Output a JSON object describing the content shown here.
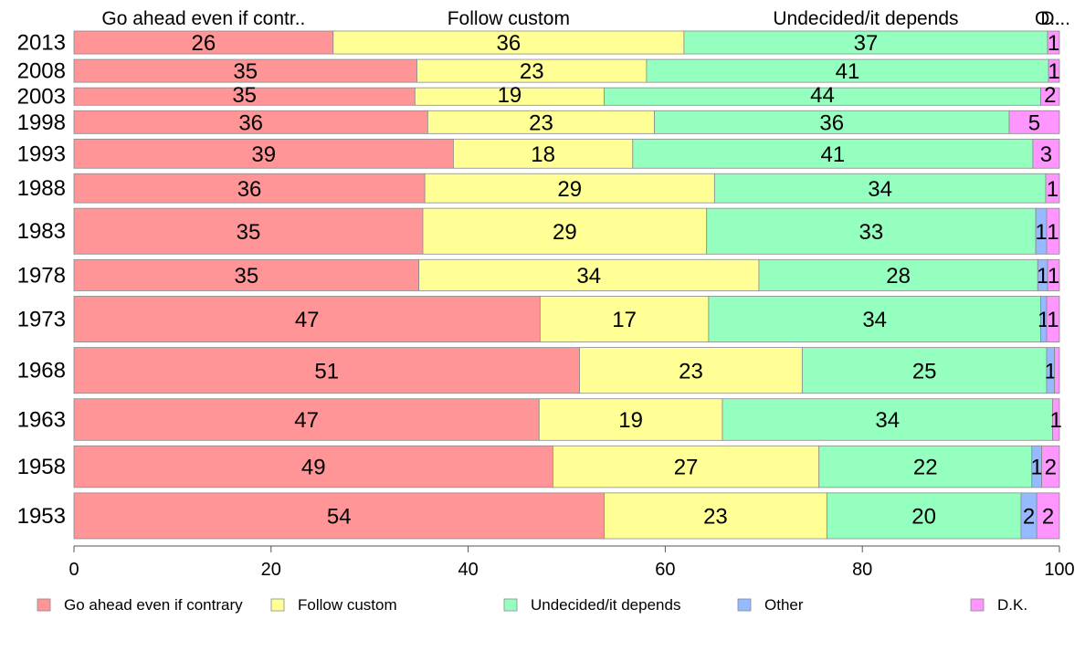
{
  "chart_data": {
    "type": "bar",
    "orientation": "horizontal",
    "stacked": true,
    "xlim": [
      0,
      100
    ],
    "xticks": [
      "0",
      "20",
      "40",
      "60",
      "80",
      "100"
    ],
    "column_labels": [
      "Go ahead even if contr..",
      "Follow custom",
      "Undecided/it depends",
      "O..",
      "D..."
    ],
    "categories": [
      "2013",
      "2008",
      "2003",
      "1998",
      "1993",
      "1988",
      "1983",
      "1978",
      "1973",
      "1968",
      "1963",
      "1958",
      "1953"
    ],
    "category_weights": [
      0.55,
      0.55,
      0.42,
      0.55,
      0.7,
      0.7,
      1.1,
      0.75,
      1.1,
      1.1,
      1.0,
      1.0,
      1.1
    ],
    "series": [
      {
        "name": "Go ahead even if contrary",
        "color": "#ff9596",
        "values": [
          26.3,
          34.8,
          34.6,
          35.9,
          38.5,
          35.6,
          35.4,
          35.0,
          47.3,
          51.3,
          47.2,
          48.6,
          53.8
        ],
        "labels": [
          "26",
          "35",
          "35",
          "36",
          "39",
          "36",
          "35",
          "35",
          "47",
          "51",
          "47",
          "49",
          "54"
        ]
      },
      {
        "name": "Follow custom",
        "color": "#ffff95",
        "values": [
          35.6,
          23.3,
          19.2,
          23.0,
          18.2,
          29.4,
          28.8,
          34.5,
          17.1,
          22.6,
          18.6,
          27.0,
          22.6
        ],
        "labels": [
          "36",
          "23",
          "19",
          "23",
          "18",
          "29",
          "29",
          "34",
          "17",
          "23",
          "19",
          "27",
          "23"
        ]
      },
      {
        "name": "Undecided/it depends",
        "color": "#95ffbf",
        "values": [
          36.9,
          40.8,
          44.3,
          36.0,
          40.6,
          33.6,
          33.4,
          28.3,
          33.7,
          24.8,
          33.5,
          21.6,
          19.7
        ],
        "labels": [
          "37",
          "41",
          "44",
          "36",
          "41",
          "34",
          "33",
          "28",
          "34",
          "25",
          "34",
          "22",
          "20"
        ]
      },
      {
        "name": "Other",
        "color": "#95baff",
        "values": [
          0,
          0,
          0,
          0,
          0,
          0,
          1.1,
          1.0,
          0.6,
          0.8,
          0,
          1.0,
          1.6
        ],
        "labels": [
          "",
          "",
          "",
          "",
          "",
          "",
          "1",
          "1",
          "1",
          "1",
          "",
          "1",
          "2"
        ]
      },
      {
        "name": "D.K.",
        "color": "#ff95ff",
        "values": [
          1.2,
          1.1,
          1.9,
          5.1,
          2.7,
          1.4,
          1.3,
          1.2,
          1.3,
          0.5,
          0.7,
          1.8,
          2.3
        ],
        "labels": [
          "1",
          "1",
          "2",
          "5",
          "3",
          "1",
          "1",
          "1",
          "1",
          "",
          "1",
          "2",
          "2"
        ]
      }
    ],
    "legend": {
      "placement": "bottom"
    },
    "grid": false
  }
}
